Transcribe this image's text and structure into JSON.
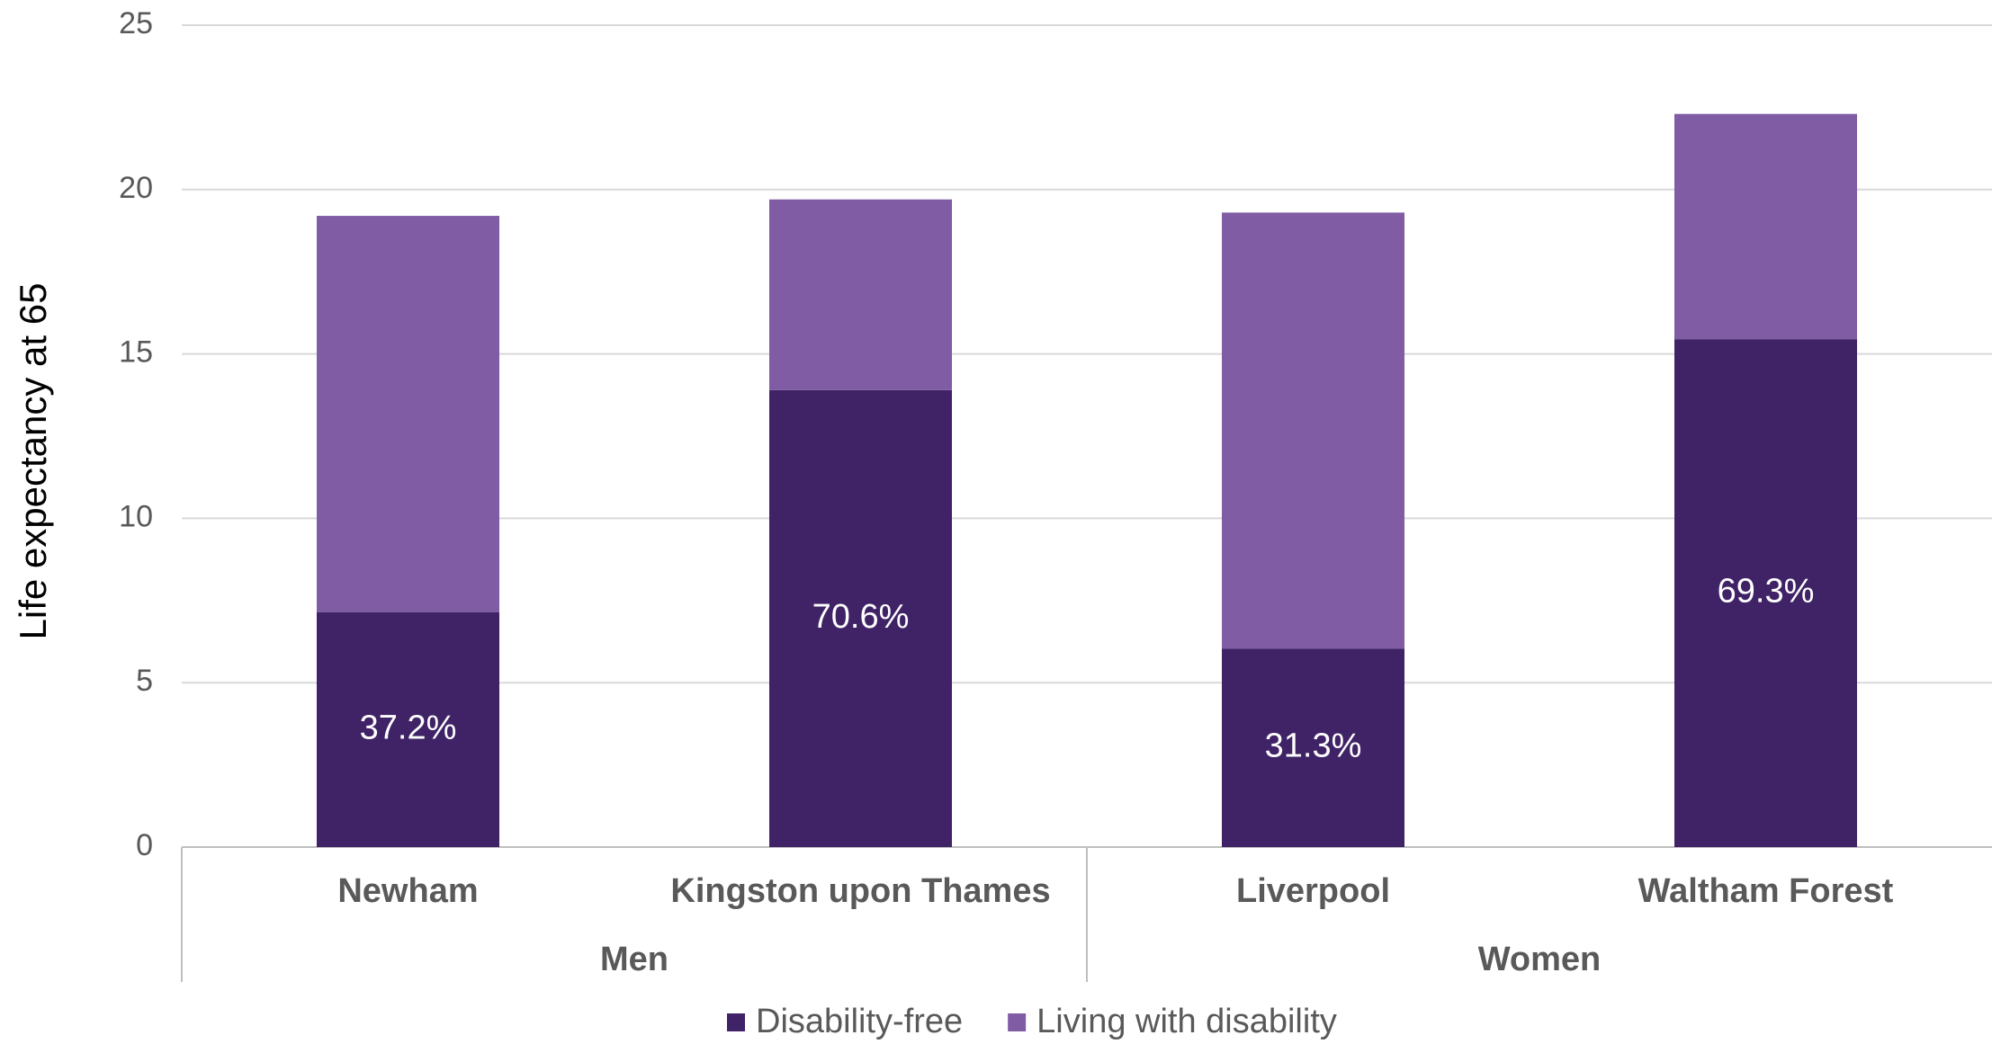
{
  "chart_data": {
    "type": "stacked_bar",
    "ylabel": "Life expectancy at 65",
    "groups": [
      {
        "label": "Men",
        "categories": [
          "Newham",
          "Kingston upon Thames"
        ]
      },
      {
        "label": "Women",
        "categories": [
          "Liverpool",
          "Waltham Forest"
        ]
      }
    ],
    "series": [
      {
        "name": "Disability-free",
        "color": "#3f2366",
        "values": [
          7.14,
          13.9,
          6.04,
          15.45
        ],
        "share_labels": [
          {
            "value": 37.2,
            "label": "37.2%"
          },
          {
            "value": 70.6,
            "label": "70.6%"
          },
          {
            "value": 31.3,
            "label": "31.3%"
          },
          {
            "value": 69.3,
            "label": "69.3%"
          }
        ]
      },
      {
        "name": "Living with disability",
        "color": "#7f5ca3",
        "values": [
          12.06,
          5.8,
          13.26,
          6.85
        ]
      }
    ],
    "ylim": [
      0,
      25
    ],
    "yticks": [
      0,
      5,
      10,
      15,
      20,
      25
    ],
    "grid": true,
    "legend": "bottom"
  }
}
